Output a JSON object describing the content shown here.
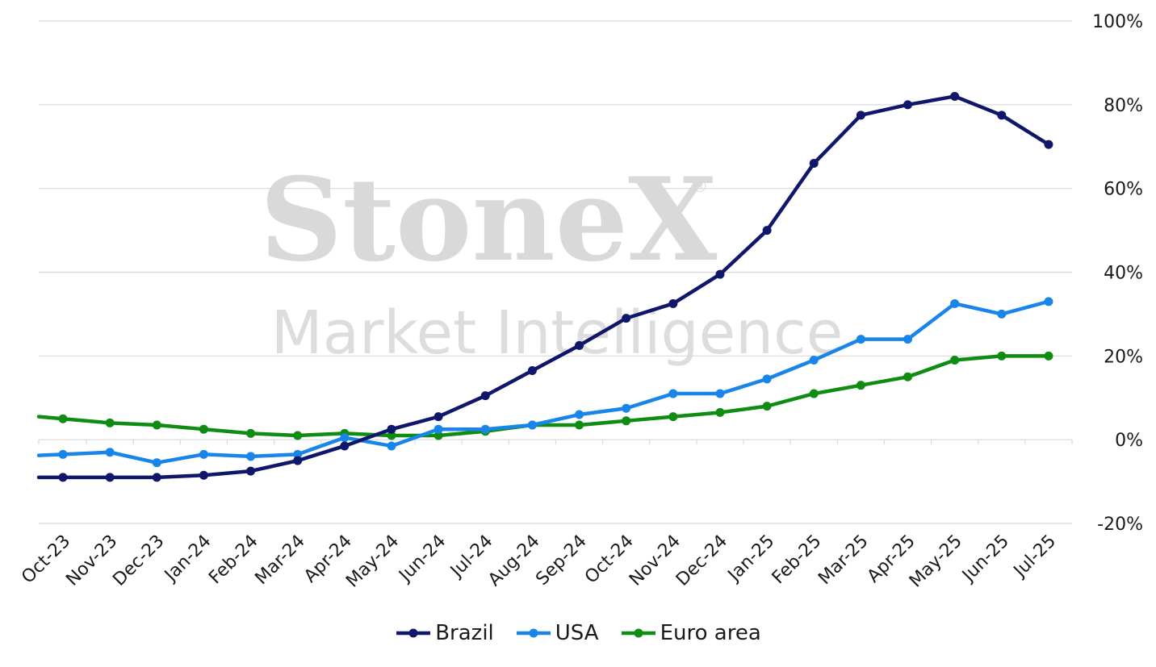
{
  "chart_data": {
    "type": "line",
    "title": "",
    "xlabel": "",
    "ylabel": "",
    "categories": [
      "Oct-23",
      "Nov-23",
      "Dec-23",
      "Jan-24",
      "Feb-24",
      "Mar-24",
      "Apr-24",
      "May-24",
      "Jun-24",
      "Jul-24",
      "Aug-24",
      "Sep-24",
      "Oct-24",
      "Nov-24",
      "Dec-24",
      "Jan-25",
      "Feb-25",
      "Mar-25",
      "Apr-25",
      "May-25",
      "Jun-25",
      "Jul-25"
    ],
    "ylim": [
      -20,
      100
    ],
    "yticks": [
      -20,
      0,
      20,
      40,
      60,
      80,
      100
    ],
    "ytick_labels": [
      "-20%",
      "0%",
      "20%",
      "40%",
      "60%",
      "80%",
      "100%"
    ],
    "y_axis_position": "right",
    "grid": true,
    "legend_position": "bottom",
    "series": [
      {
        "name": "Brazil",
        "color": "#10176b",
        "values": [
          -9.0,
          -9.0,
          -9.0,
          -8.5,
          -7.5,
          -5.0,
          -1.5,
          2.5,
          5.5,
          10.5,
          16.5,
          22.5,
          29.0,
          32.5,
          39.5,
          50.0,
          66.0,
          77.5,
          80.0,
          82.0,
          77.5,
          70.5
        ]
      },
      {
        "name": "USA",
        "color": "#1a85e8",
        "values": [
          -3.5,
          -3.0,
          -5.5,
          -3.5,
          -4.0,
          -3.5,
          0.5,
          -1.5,
          2.5,
          2.5,
          3.5,
          6.0,
          7.5,
          11.0,
          11.0,
          14.5,
          19.0,
          24.0,
          24.0,
          32.5,
          30.0,
          33.0
        ]
      },
      {
        "name": "Euro area",
        "color": "#0f8c12",
        "values": [
          5.0,
          4.0,
          3.5,
          2.5,
          1.5,
          1.0,
          1.5,
          1.0,
          1.0,
          2.0,
          3.5,
          3.5,
          4.5,
          5.5,
          6.5,
          8.0,
          11.0,
          13.0,
          15.0,
          19.0,
          20.0,
          20.0
        ]
      }
    ],
    "watermark": {
      "brand": "StoneX",
      "subtitle": "Market Intelligence"
    }
  }
}
